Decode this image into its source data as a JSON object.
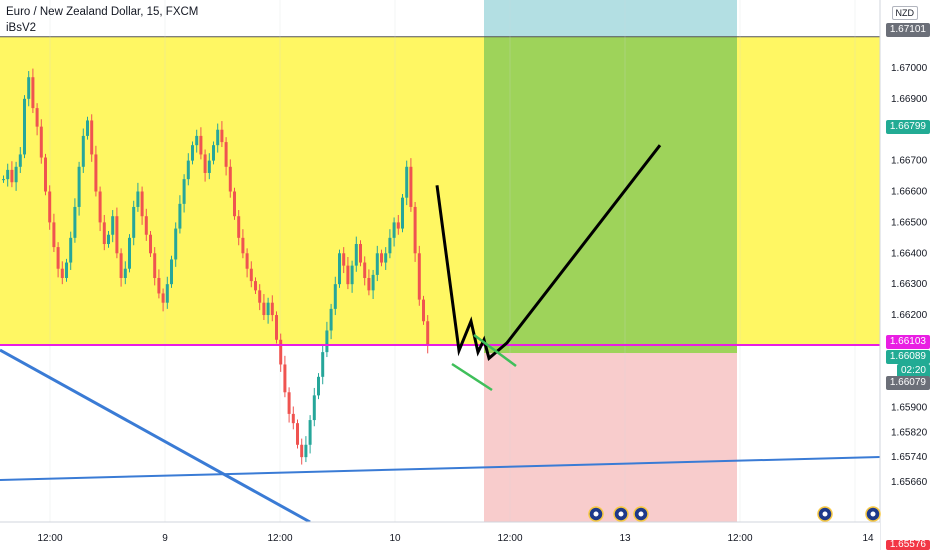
{
  "header": {
    "symbol_line": "Euro / New Zealand Dollar, 15, FXCM",
    "indicator": "iBsV2"
  },
  "axis": {
    "currency": "NZD",
    "price_ticks": [
      "1.67000",
      "1.66900",
      "1.66700",
      "1.66600",
      "1.66500",
      "1.66400",
      "1.66300",
      "1.66200",
      "1.65900",
      "1.65820",
      "1.65740",
      "1.65660"
    ],
    "time_ticks": [
      "12:00",
      "9",
      "12:00",
      "10",
      "12:00",
      "13",
      "12:00",
      "14"
    ]
  },
  "badges": {
    "top_zone": "1.67101",
    "target": "1.66799",
    "entry": "1.66103",
    "last_price": "1.66089",
    "countdown": "02:20",
    "stop_near": "1.66079",
    "bottom": "1.65576"
  },
  "colors": {
    "yellow_zone": "#fff763",
    "profit_zone": "#9ed35a",
    "profit_top": "#b3dfe3",
    "loss_zone": "#f8cccc",
    "magenta_line": "#e91ee3",
    "trend_blue": "#3a7bd5",
    "up_candle": "#26a69a",
    "down_candle": "#ef5350",
    "target_badge": "#22ab94",
    "axis_text": "#131722"
  },
  "chart_data": {
    "type": "candlestick",
    "y_range": [
      1.6553,
      1.6722
    ],
    "entry_price": 1.66103,
    "target_price": 1.66799,
    "stop_price": 1.66079,
    "zone_top": 1.67101,
    "close_series": [
      1.6664,
      1.6667,
      1.6663,
      1.6668,
      1.6672,
      1.669,
      1.6697,
      1.6687,
      1.6681,
      1.6671,
      1.666,
      1.665,
      1.6642,
      1.6635,
      1.6632,
      1.6637,
      1.6645,
      1.6655,
      1.6668,
      1.6678,
      1.6683,
      1.6672,
      1.666,
      1.665,
      1.6643,
      1.6646,
      1.6652,
      1.664,
      1.6632,
      1.6635,
      1.6645,
      1.6655,
      1.666,
      1.6652,
      1.6646,
      1.664,
      1.6632,
      1.6627,
      1.6624,
      1.663,
      1.6638,
      1.6648,
      1.6656,
      1.6664,
      1.667,
      1.6675,
      1.6678,
      1.6672,
      1.6666,
      1.667,
      1.6675,
      1.668,
      1.6676,
      1.6668,
      1.666,
      1.6652,
      1.6645,
      1.664,
      1.6635,
      1.6631,
      1.6628,
      1.6624,
      1.662,
      1.6624,
      1.662,
      1.6612,
      1.6604,
      1.6595,
      1.6588,
      1.6585,
      1.6578,
      1.6574,
      1.6578,
      1.6586,
      1.6594,
      1.66,
      1.6608,
      1.6615,
      1.6622,
      1.663,
      1.664,
      1.6636,
      1.663,
      1.6636,
      1.6643,
      1.6637,
      1.6632,
      1.6628,
      1.6633,
      1.664,
      1.6637,
      1.664,
      1.6645,
      1.665,
      1.6648,
      1.6658,
      1.6668,
      1.6655,
      1.664,
      1.6625,
      1.6618,
      1.661
    ],
    "forecast_path": [
      1.6662,
      1.66085,
      1.6618,
      1.6608,
      1.6612,
      1.6606,
      1.6611,
      1.6675
    ]
  }
}
